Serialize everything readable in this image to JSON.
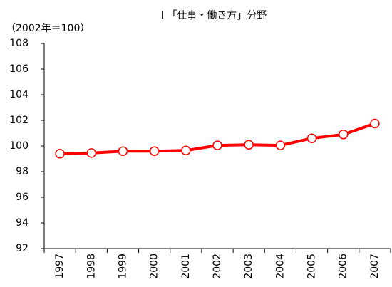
{
  "chart_data": {
    "type": "line",
    "title": "Ⅰ 「仕事・働き方」分野",
    "y_label": "（2002年＝100）",
    "categories": [
      "1997",
      "1998",
      "1999",
      "2000",
      "2001",
      "2002",
      "2003",
      "2004",
      "2005",
      "2006",
      "2007"
    ],
    "values": [
      99.4,
      99.45,
      99.6,
      99.6,
      99.65,
      100.05,
      100.1,
      100.05,
      100.6,
      100.9,
      101.75
    ],
    "color": "#ff0000",
    "ylim": [
      92,
      108
    ],
    "yticks": [
      92,
      94,
      96,
      98,
      100,
      102,
      104,
      106,
      108
    ],
    "grid": false
  }
}
